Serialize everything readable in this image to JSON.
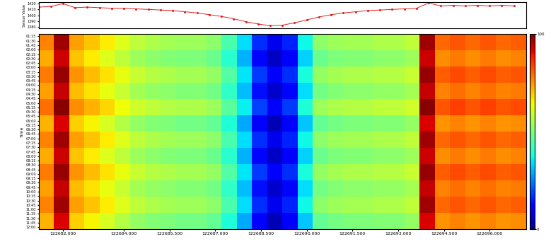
{
  "chart_data": [
    {
      "type": "line",
      "ylabel": "Sensor Value",
      "color": "#e02020",
      "marker": "o",
      "tick_labels": "y",
      "x": [
        122681.2,
        122681.6,
        122682.0,
        122682.4,
        122682.8,
        122683.2,
        122683.6,
        122684.0,
        122684.4,
        122684.8,
        122685.2,
        122685.6,
        122686.0,
        122686.4,
        122686.8,
        122687.2,
        122687.6,
        122688.0,
        122688.4,
        122688.8,
        122689.2,
        122689.6,
        122690.0,
        122690.4,
        122690.8,
        122691.2,
        122691.6,
        122692.0,
        122692.4,
        122692.8,
        122693.2,
        122693.6,
        122694.0,
        122694.4,
        122694.8,
        122695.2,
        122695.6,
        122696.0,
        122696.4,
        122696.8
      ],
      "values": [
        1414,
        1415,
        1420,
        1413,
        1414,
        1413,
        1412,
        1412,
        1411,
        1410,
        1409,
        1408,
        1406,
        1404,
        1401,
        1398,
        1394,
        1389,
        1385,
        1382,
        1383,
        1387,
        1392,
        1397,
        1401,
        1404,
        1406,
        1408,
        1409,
        1410,
        1411,
        1412,
        1421,
        1416,
        1417,
        1416,
        1417,
        1416,
        1417,
        1416
      ],
      "xlim": [
        122681.2,
        122697.2
      ],
      "ylim": [
        1378,
        1422
      ],
      "yticks": [
        1380,
        1390,
        1400,
        1410,
        1420
      ]
    },
    {
      "type": "heatmap",
      "ylabel": "Time",
      "x_edges": [
        122681.2,
        122681.7,
        122682.2,
        122682.7,
        122683.2,
        122683.7,
        122684.2,
        122684.7,
        122685.2,
        122685.7,
        122686.2,
        122686.7,
        122687.2,
        122687.7,
        122688.2,
        122688.7,
        122689.2,
        122689.7,
        122690.2,
        122690.7,
        122691.2,
        122691.7,
        122692.2,
        122692.7,
        122693.2,
        122693.7,
        122694.2,
        122694.7,
        122695.2,
        122695.7,
        122696.2,
        122696.7,
        122697.2
      ],
      "y_edges": [
        67.5,
        122.5,
        177.5,
        232.5,
        287.5,
        342.5,
        397.5,
        452.5,
        507.5,
        562.5,
        617.5,
        672.5,
        727.5
      ],
      "cells": [
        [
          77,
          97,
          74,
          70,
          66,
          62,
          58,
          56,
          55,
          54,
          54,
          52,
          44,
          34,
          17,
          10,
          16,
          37,
          52,
          54,
          55,
          55,
          56,
          56,
          58,
          97,
          80,
          82,
          80,
          82,
          80,
          81
        ],
        [
          73,
          93,
          70,
          66,
          62,
          58,
          54,
          52,
          51,
          50,
          50,
          48,
          40,
          30,
          13,
          6,
          12,
          33,
          48,
          50,
          51,
          51,
          52,
          52,
          54,
          93,
          76,
          78,
          76,
          78,
          76,
          77
        ],
        [
          78,
          98,
          75,
          71,
          67,
          63,
          59,
          57,
          56,
          55,
          55,
          53,
          45,
          35,
          18,
          11,
          17,
          38,
          53,
          55,
          56,
          56,
          57,
          57,
          59,
          98,
          81,
          83,
          81,
          83,
          81,
          82
        ],
        [
          74,
          94,
          71,
          67,
          63,
          59,
          55,
          53,
          52,
          51,
          51,
          49,
          41,
          31,
          14,
          7,
          13,
          34,
          49,
          51,
          52,
          52,
          53,
          53,
          55,
          94,
          77,
          79,
          77,
          79,
          77,
          78
        ],
        [
          79,
          99,
          76,
          72,
          68,
          64,
          60,
          58,
          57,
          56,
          56,
          54,
          46,
          36,
          19,
          12,
          18,
          39,
          54,
          56,
          57,
          57,
          58,
          58,
          60,
          99,
          82,
          84,
          82,
          84,
          82,
          83
        ],
        [
          72,
          92,
          69,
          65,
          61,
          57,
          53,
          51,
          50,
          49,
          49,
          47,
          39,
          29,
          12,
          5,
          11,
          32,
          47,
          49,
          50,
          50,
          51,
          51,
          53,
          92,
          75,
          77,
          75,
          77,
          75,
          76
        ],
        [
          77,
          97,
          74,
          70,
          66,
          62,
          58,
          56,
          55,
          54,
          54,
          52,
          44,
          34,
          17,
          10,
          16,
          37,
          52,
          54,
          55,
          55,
          56,
          56,
          58,
          97,
          80,
          82,
          80,
          82,
          80,
          81
        ],
        [
          73,
          93,
          70,
          66,
          62,
          58,
          54,
          52,
          51,
          50,
          50,
          48,
          40,
          30,
          13,
          6,
          12,
          33,
          48,
          50,
          51,
          51,
          52,
          52,
          54,
          93,
          76,
          78,
          76,
          78,
          76,
          77
        ],
        [
          78,
          98,
          75,
          71,
          67,
          63,
          59,
          57,
          56,
          55,
          55,
          53,
          45,
          35,
          18,
          11,
          17,
          38,
          53,
          55,
          56,
          56,
          57,
          57,
          59,
          98,
          81,
          83,
          81,
          83,
          81,
          82
        ],
        [
          74,
          94,
          71,
          67,
          63,
          59,
          55,
          53,
          52,
          51,
          51,
          49,
          41,
          31,
          14,
          7,
          13,
          34,
          49,
          51,
          52,
          52,
          53,
          53,
          55,
          94,
          77,
          79,
          77,
          79,
          77,
          78
        ],
        [
          77,
          97,
          74,
          70,
          66,
          62,
          58,
          56,
          55,
          54,
          54,
          52,
          44,
          34,
          17,
          10,
          16,
          37,
          52,
          54,
          55,
          55,
          56,
          56,
          58,
          97,
          80,
          82,
          80,
          82,
          80,
          81
        ],
        [
          72,
          92,
          69,
          65,
          61,
          57,
          53,
          51,
          50,
          49,
          49,
          47,
          39,
          29,
          12,
          5,
          11,
          32,
          47,
          49,
          50,
          50,
          51,
          51,
          53,
          92,
          75,
          77,
          75,
          77,
          75,
          76
        ]
      ],
      "xlim": [
        122681.2,
        122697.2
      ],
      "ylim": [
        727.5,
        67.5
      ],
      "xticks": [
        {
          "value": 122682,
          "label": "122682.000"
        },
        {
          "value": 122684,
          "label": "122684.000"
        },
        {
          "value": 122685.5,
          "label": "122685.500"
        },
        {
          "value": 122687,
          "label": "122687.000"
        },
        {
          "value": 122688.5,
          "label": "122688.500"
        },
        {
          "value": 122690,
          "label": "122690.000"
        },
        {
          "value": 122691.5,
          "label": "122691.500"
        },
        {
          "value": 122693,
          "label": "122693.000"
        },
        {
          "value": 122694.5,
          "label": "122694.500"
        },
        {
          "value": 122696,
          "label": "122696.000"
        }
      ],
      "yticks": [
        {
          "value": 75,
          "label": "01:15"
        },
        {
          "value": 90,
          "label": "01:30"
        },
        {
          "value": 105,
          "label": "01:45"
        },
        {
          "value": 120,
          "label": "02:00"
        },
        {
          "value": 135,
          "label": "02:15"
        },
        {
          "value": 150,
          "label": "02:30"
        },
        {
          "value": 165,
          "label": "02:45"
        },
        {
          "value": 180,
          "label": "03:00"
        },
        {
          "value": 195,
          "label": "03:15"
        },
        {
          "value": 210,
          "label": "03:30"
        },
        {
          "value": 225,
          "label": "03:45"
        },
        {
          "value": 240,
          "label": "04:00"
        },
        {
          "value": 255,
          "label": "04:15"
        },
        {
          "value": 270,
          "label": "04:30"
        },
        {
          "value": 285,
          "label": "04:45"
        },
        {
          "value": 300,
          "label": "05:00"
        },
        {
          "value": 315,
          "label": "05:15"
        },
        {
          "value": 330,
          "label": "05:30"
        },
        {
          "value": 345,
          "label": "05:45"
        },
        {
          "value": 360,
          "label": "06:00"
        },
        {
          "value": 375,
          "label": "06:15"
        },
        {
          "value": 390,
          "label": "06:30"
        },
        {
          "value": 405,
          "label": "06:45"
        },
        {
          "value": 420,
          "label": "07:00"
        },
        {
          "value": 435,
          "label": "07:15"
        },
        {
          "value": 450,
          "label": "07:30"
        },
        {
          "value": 465,
          "label": "07:45"
        },
        {
          "value": 480,
          "label": "08:00"
        },
        {
          "value": 495,
          "label": "08:15"
        },
        {
          "value": 510,
          "label": "08:30"
        },
        {
          "value": 525,
          "label": "08:45"
        },
        {
          "value": 540,
          "label": "09:00"
        },
        {
          "value": 555,
          "label": "09:15"
        },
        {
          "value": 570,
          "label": "09:30"
        },
        {
          "value": 585,
          "label": "09:45"
        },
        {
          "value": 600,
          "label": "10:00"
        },
        {
          "value": 615,
          "label": "10:15"
        },
        {
          "value": 630,
          "label": "10:30"
        },
        {
          "value": 645,
          "label": "10:45"
        },
        {
          "value": 660,
          "label": "11:00"
        },
        {
          "value": 675,
          "label": "11:15"
        },
        {
          "value": 690,
          "label": "11:30"
        },
        {
          "value": 705,
          "label": "11:45"
        },
        {
          "value": 720,
          "label": "12:00"
        }
      ],
      "colorbar": {
        "range": [
          0,
          100
        ],
        "ticks": [
          0,
          100
        ]
      }
    }
  ]
}
